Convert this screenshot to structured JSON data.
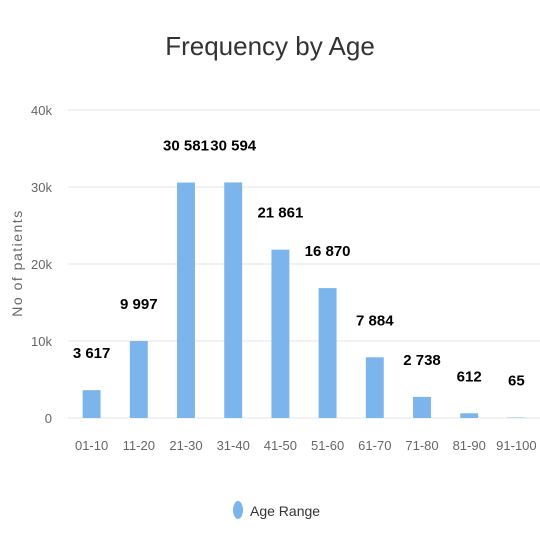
{
  "chart_data": {
    "type": "bar",
    "title": "Frequency by Age",
    "ylabel": "No of patients",
    "xlabel": "",
    "categories": [
      "01-10",
      "11-20",
      "21-30",
      "31-40",
      "41-50",
      "51-60",
      "61-70",
      "71-80",
      "81-90",
      "91-100"
    ],
    "series": [
      {
        "name": "Age Range",
        "values": [
          3617,
          9997,
          30581,
          30594,
          21861,
          16870,
          7884,
          2738,
          612,
          65
        ],
        "labels": [
          "3 617",
          "9 997",
          "30 581",
          "30 594",
          "21 861",
          "16 870",
          "7 884",
          "2 738",
          "612",
          "65"
        ],
        "color": "#7cb5ec"
      }
    ],
    "ylim": [
      0,
      40000
    ],
    "yticks": [
      0,
      10000,
      20000,
      30000,
      40000
    ],
    "ytick_labels": [
      "0",
      "10k",
      "20k",
      "30k",
      "40k"
    ],
    "grid": true,
    "legend": "bottom-center"
  }
}
